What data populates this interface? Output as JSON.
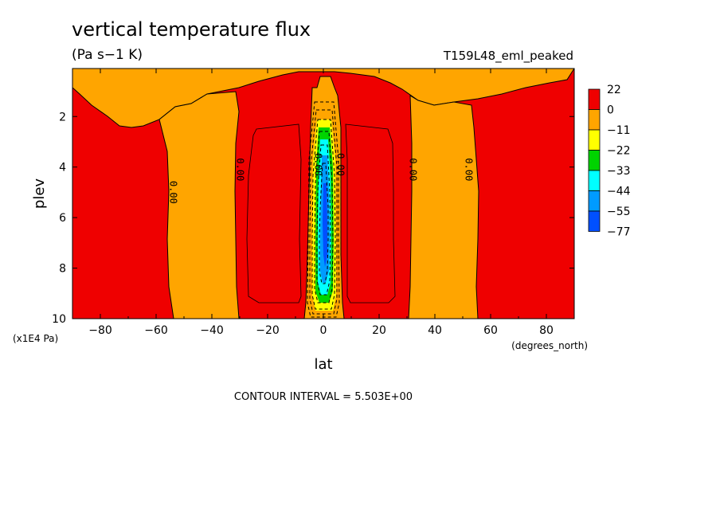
{
  "chart_data": {
    "type": "heatmap",
    "title": "vertical temperature flux",
    "subtitle": "(Pa s−1 K)",
    "run_label": "T159L48_eml_peaked",
    "xlabel": "lat",
    "x_units": "(degrees_north)",
    "ylabel": "plev",
    "y_units": "(x1E4 Pa)",
    "xlim": [
      -90,
      90
    ],
    "ylim": [
      10,
      0.1
    ],
    "x_ticks": [
      "−80",
      "−60",
      "−40",
      "−20",
      "0",
      "20",
      "40",
      "60",
      "80"
    ],
    "x_tick_values": [
      -80,
      -60,
      -40,
      -20,
      0,
      20,
      40,
      60,
      80
    ],
    "y_ticks": [
      "2",
      "4",
      "6",
      "8",
      "10"
    ],
    "y_tick_values": [
      2,
      4,
      6,
      8,
      10
    ],
    "contour_interval": "CONTOUR INTERVAL = 5.503E+00",
    "contour_labels": [
      "0.00",
      "0.00",
      "0.00",
      "0.00",
      "0.00",
      "0.00"
    ],
    "legend": {
      "placement": "right",
      "labels": [
        "22",
        "0",
        "−11",
        "−22",
        "−33",
        "−44",
        "−55",
        "−77"
      ],
      "colors": [
        "#ef0000",
        "#ffa500",
        "#ffff00",
        "#00d400",
        "#00ffff",
        "#009bff",
        "#0050ff"
      ]
    },
    "regions": [
      {
        "name": "positive-flux",
        "range": "0 to 22",
        "color": "#ef0000",
        "lat_extent": [
          -90,
          90
        ]
      },
      {
        "name": "weak-negative-flux",
        "range": "-11 to 0",
        "color": "#ffa500",
        "lat_bands": [
          [
            -55,
            -30
          ],
          [
            30,
            55
          ]
        ]
      },
      {
        "name": "equatorial-negative-flux",
        "range": "-77 to 0",
        "lat_extent": [
          -3,
          3
        ],
        "plev_extent": [
          1.5,
          10
        ]
      }
    ]
  }
}
